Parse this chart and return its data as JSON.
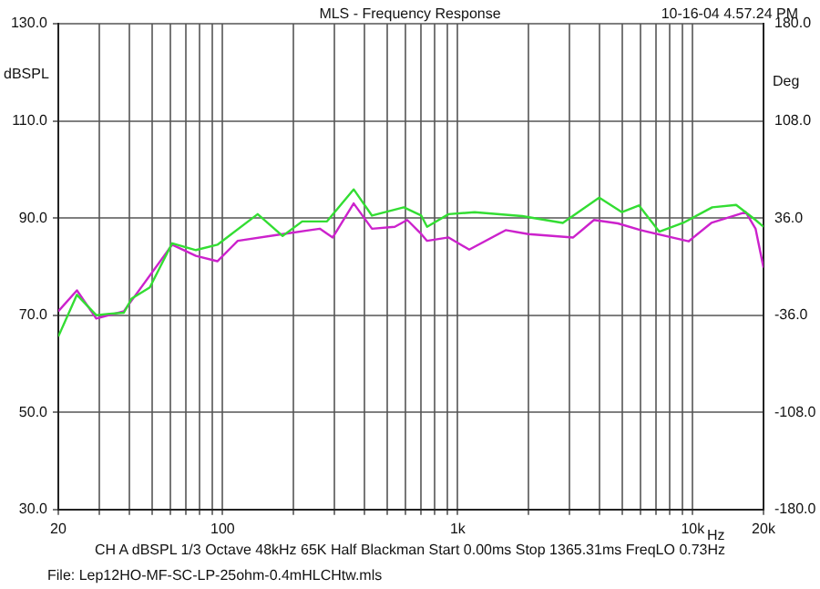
{
  "chart_data": {
    "type": "line",
    "title": "MLS - Frequency Response",
    "xlabel": "Hz",
    "ylabel": "dBSPL",
    "y2label": "Deg",
    "annotations": [
      "10-16-04 4.57.24 PM",
      "CH A   dBSPL   1/3 Octave   48kHz   65K   Half Blackman   Start 0.00ms   Stop 1365.31ms   FreqLO 0.73Hz",
      "File: Lep12HO-MF-SC-LP-25ohm-0.4mHLCHtw.mls"
    ],
    "log": "x",
    "grid": true,
    "legend": false,
    "marker": "none",
    "line_style": "solid",
    "xlim": [
      20,
      20000
    ],
    "xticks": [
      {
        "value": 20,
        "label": "20"
      },
      {
        "value": 30,
        "label": null
      },
      {
        "value": 40,
        "label": null
      },
      {
        "value": 50,
        "label": null
      },
      {
        "value": 60,
        "label": null
      },
      {
        "value": 70,
        "label": null
      },
      {
        "value": 80,
        "label": null
      },
      {
        "value": 90,
        "label": null
      },
      {
        "value": 100,
        "label": "100"
      },
      {
        "value": 200,
        "label": null
      },
      {
        "value": 300,
        "label": null
      },
      {
        "value": 400,
        "label": null
      },
      {
        "value": 500,
        "label": null
      },
      {
        "value": 600,
        "label": null
      },
      {
        "value": 700,
        "label": null
      },
      {
        "value": 800,
        "label": null
      },
      {
        "value": 900,
        "label": null
      },
      {
        "value": 1000,
        "label": "1k"
      },
      {
        "value": 2000,
        "label": null
      },
      {
        "value": 3000,
        "label": null
      },
      {
        "value": 4000,
        "label": null
      },
      {
        "value": 5000,
        "label": null
      },
      {
        "value": 6000,
        "label": null
      },
      {
        "value": 7000,
        "label": null
      },
      {
        "value": 8000,
        "label": null
      },
      {
        "value": 9000,
        "label": null
      },
      {
        "value": 10000,
        "label": "10k"
      },
      {
        "value": 20000,
        "label": "20k"
      }
    ],
    "ylim": [
      30,
      130
    ],
    "yticks": [
      {
        "value": 30,
        "label": "30.0"
      },
      {
        "value": 50,
        "label": "50.0"
      },
      {
        "value": 70,
        "label": "70.0"
      },
      {
        "value": 90,
        "label": "90.0"
      },
      {
        "value": 110,
        "label": "110.0"
      },
      {
        "value": 130,
        "label": "130.0"
      }
    ],
    "y2lim": [
      -180,
      180
    ],
    "y2ticks": [
      {
        "value": -180,
        "label": "-180.0"
      },
      {
        "value": -108,
        "label": "-108.0"
      },
      {
        "value": -36,
        "label": "-36.0"
      },
      {
        "value": 36,
        "label": "36.0"
      },
      {
        "value": 108,
        "label": "108.0"
      },
      {
        "value": 180,
        "label": "180.0"
      }
    ],
    "series": [
      {
        "color": "#33dd33",
        "x": [
          20,
          24,
          29,
          33,
          38,
          41,
          49,
          61,
          77,
          95,
          141,
          180,
          218,
          278,
          361,
          432,
          590,
          700,
          741,
          915,
          1180,
          1880,
          2800,
          4000,
          5000,
          5900,
          7200,
          9100,
          12100,
          15300,
          18500,
          20000
        ],
        "values": [
          65.6,
          74.2,
          70,
          70.3,
          70.5,
          73.4,
          75.7,
          84.8,
          83.4,
          84.5,
          90.8,
          86.3,
          89.3,
          89.3,
          95.9,
          90.5,
          92.2,
          90.5,
          88.2,
          90.8,
          91.2,
          90.4,
          89,
          94.2,
          91.2,
          92.6,
          87.2,
          89,
          92.2,
          92.7,
          89.6,
          88.2
        ]
      },
      {
        "color": "#cc22cc",
        "x": [
          20,
          24,
          29,
          38,
          61,
          77,
          95,
          116,
          180,
          259,
          294,
          361,
          432,
          540,
          610,
          700,
          741,
          915,
          1120,
          1600,
          2000,
          3100,
          3800,
          4800,
          6000,
          9600,
          12000,
          16800,
          18500,
          20000
        ],
        "values": [
          70.8,
          75.1,
          69.3,
          70.8,
          84.5,
          82.2,
          81.1,
          85.3,
          86.7,
          87.8,
          86,
          93,
          87.8,
          88.2,
          89.6,
          86.7,
          85.3,
          86,
          83.5,
          87.5,
          86.7,
          86,
          89.6,
          88.9,
          87.5,
          85.2,
          89,
          91.2,
          87.8,
          79.8
        ]
      }
    ]
  }
}
